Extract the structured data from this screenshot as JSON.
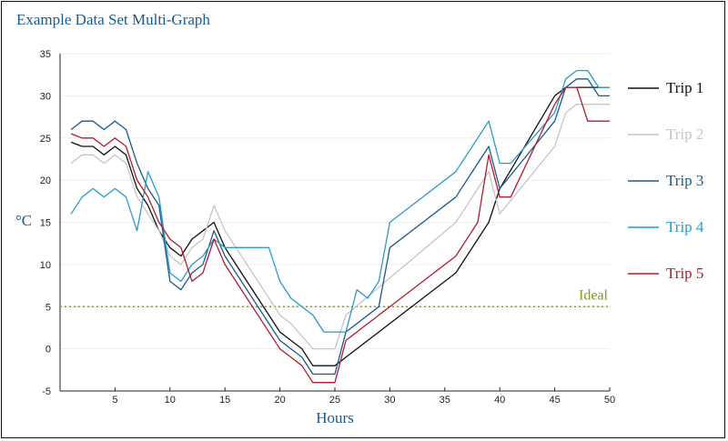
{
  "chart_data": {
    "type": "line",
    "title": "Example Data Set Multi-Graph",
    "xlabel": "Hours",
    "ylabel": "°C",
    "xlim": [
      0,
      50
    ],
    "ylim": [
      -5,
      35
    ],
    "x_ticks": [
      5,
      10,
      15,
      20,
      25,
      30,
      35,
      40,
      45,
      50
    ],
    "y_ticks": [
      35,
      30,
      25,
      20,
      15,
      10,
      5,
      0,
      -5
    ],
    "grid": "horizontal",
    "legend_position": "right",
    "reference_line": {
      "label": "Ideal",
      "y": 5,
      "color": "#8a9a1a"
    },
    "series": [
      {
        "name": "Trip 1",
        "color": "#111111",
        "points": [
          [
            1,
            24.5
          ],
          [
            2,
            24
          ],
          [
            3,
            24
          ],
          [
            4,
            23
          ],
          [
            5,
            24
          ],
          [
            6,
            23
          ],
          [
            7,
            19
          ],
          [
            8,
            17
          ],
          [
            9,
            14
          ],
          [
            10,
            12
          ],
          [
            11,
            11
          ],
          [
            12,
            13
          ],
          [
            13,
            14
          ],
          [
            14,
            15
          ],
          [
            15,
            12
          ],
          [
            20,
            2
          ],
          [
            21,
            1
          ],
          [
            22,
            0
          ],
          [
            23,
            -2
          ],
          [
            24,
            -2
          ],
          [
            25,
            -2
          ],
          [
            26,
            -1
          ],
          [
            36,
            9
          ],
          [
            39,
            15
          ],
          [
            40,
            19
          ],
          [
            45,
            30
          ],
          [
            46,
            31
          ],
          [
            47,
            31
          ],
          [
            48,
            31
          ],
          [
            50,
            31
          ]
        ]
      },
      {
        "name": "Trip 2",
        "color": "#c6c6c6",
        "points": [
          [
            1,
            22
          ],
          [
            2,
            23
          ],
          [
            3,
            23
          ],
          [
            4,
            22
          ],
          [
            5,
            23
          ],
          [
            6,
            22
          ],
          [
            7,
            18
          ],
          [
            8,
            16
          ],
          [
            9,
            14
          ],
          [
            10,
            11
          ],
          [
            11,
            10
          ],
          [
            12,
            12
          ],
          [
            13,
            13
          ],
          [
            14,
            17
          ],
          [
            15,
            14
          ],
          [
            20,
            4
          ],
          [
            21,
            3
          ],
          [
            22,
            1.5
          ],
          [
            23,
            0
          ],
          [
            24,
            0
          ],
          [
            25,
            0
          ],
          [
            26,
            4
          ],
          [
            36,
            15
          ],
          [
            39,
            21
          ],
          [
            40,
            16
          ],
          [
            45,
            24
          ],
          [
            46,
            28
          ],
          [
            47,
            29
          ],
          [
            48,
            29
          ],
          [
            50,
            29
          ]
        ]
      },
      {
        "name": "Trip 3",
        "color": "#1a5a8c",
        "points": [
          [
            1,
            26
          ],
          [
            2,
            27
          ],
          [
            3,
            27
          ],
          [
            4,
            26
          ],
          [
            5,
            27
          ],
          [
            6,
            26
          ],
          [
            7,
            22
          ],
          [
            8,
            19
          ],
          [
            9,
            17
          ],
          [
            10,
            8
          ],
          [
            11,
            7
          ],
          [
            12,
            9
          ],
          [
            13,
            10
          ],
          [
            14,
            14
          ],
          [
            15,
            11
          ],
          [
            20,
            1
          ],
          [
            21,
            0
          ],
          [
            22,
            -1
          ],
          [
            23,
            -3
          ],
          [
            24,
            -3
          ],
          [
            25,
            -3
          ],
          [
            26,
            2
          ],
          [
            29,
            5
          ],
          [
            30,
            12
          ],
          [
            36,
            18
          ],
          [
            39,
            24
          ],
          [
            40,
            19
          ],
          [
            45,
            27
          ],
          [
            46,
            31
          ],
          [
            47,
            32
          ],
          [
            48,
            32
          ],
          [
            49,
            30
          ],
          [
            50,
            30
          ]
        ]
      },
      {
        "name": "Trip 4",
        "color": "#2a9cc8",
        "points": [
          [
            1,
            16
          ],
          [
            2,
            18
          ],
          [
            3,
            19
          ],
          [
            4,
            18
          ],
          [
            5,
            19
          ],
          [
            6,
            18
          ],
          [
            7,
            14
          ],
          [
            8,
            21
          ],
          [
            9,
            18
          ],
          [
            10,
            9
          ],
          [
            11,
            8
          ],
          [
            12,
            10
          ],
          [
            13,
            11
          ],
          [
            14,
            13
          ],
          [
            15,
            12
          ],
          [
            19,
            12
          ],
          [
            20,
            8
          ],
          [
            21,
            6
          ],
          [
            22,
            5
          ],
          [
            23,
            4
          ],
          [
            24,
            2
          ],
          [
            25,
            2
          ],
          [
            26,
            2
          ],
          [
            27,
            7
          ],
          [
            28,
            6
          ],
          [
            29,
            8
          ],
          [
            30,
            15
          ],
          [
            36,
            21
          ],
          [
            39,
            27
          ],
          [
            40,
            22
          ],
          [
            41,
            22
          ],
          [
            45,
            28
          ],
          [
            46,
            32
          ],
          [
            47,
            33
          ],
          [
            48,
            33
          ],
          [
            49,
            31
          ],
          [
            50,
            31
          ]
        ]
      },
      {
        "name": "Trip 5",
        "color": "#b01c2e",
        "points": [
          [
            1,
            25.5
          ],
          [
            2,
            25
          ],
          [
            3,
            25
          ],
          [
            4,
            24
          ],
          [
            5,
            25
          ],
          [
            6,
            24
          ],
          [
            7,
            20
          ],
          [
            8,
            18
          ],
          [
            9,
            15
          ],
          [
            10,
            13
          ],
          [
            11,
            12
          ],
          [
            12,
            8
          ],
          [
            13,
            9
          ],
          [
            14,
            13
          ],
          [
            15,
            10
          ],
          [
            20,
            0
          ],
          [
            21,
            -1
          ],
          [
            22,
            -2
          ],
          [
            23,
            -4
          ],
          [
            24,
            -4
          ],
          [
            25,
            -4
          ],
          [
            26,
            1
          ],
          [
            36,
            11
          ],
          [
            38,
            15
          ],
          [
            39,
            23
          ],
          [
            40,
            18
          ],
          [
            41,
            18
          ],
          [
            45,
            29
          ],
          [
            46,
            31
          ],
          [
            47,
            31
          ],
          [
            48,
            27
          ],
          [
            50,
            27
          ]
        ]
      }
    ]
  }
}
